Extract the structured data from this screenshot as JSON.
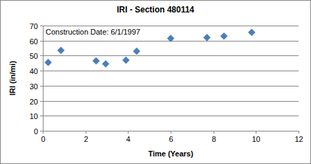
{
  "chart_data": {
    "type": "scatter",
    "title": "IRI - Section 480114",
    "annotations": [
      "Construction Date: 6/1/1997"
    ],
    "x_label": "Time (Years)",
    "y_label": "IRI (in/mi)",
    "x": [
      0.25,
      0.85,
      2.5,
      2.95,
      3.9,
      4.4,
      6.0,
      7.7,
      8.5,
      9.8
    ],
    "values": [
      45.5,
      53.5,
      46.5,
      44.5,
      47,
      53,
      61.5,
      62,
      63,
      65.5
    ],
    "color": "#4a7ebb",
    "marker": "diamond",
    "xlim": [
      0,
      12
    ],
    "xticks": [
      0,
      2,
      4,
      6,
      8,
      10,
      12
    ],
    "ylim": [
      0,
      70
    ],
    "yticks": [
      0,
      10,
      20,
      30,
      40,
      50,
      60,
      70
    ],
    "grid": true
  }
}
